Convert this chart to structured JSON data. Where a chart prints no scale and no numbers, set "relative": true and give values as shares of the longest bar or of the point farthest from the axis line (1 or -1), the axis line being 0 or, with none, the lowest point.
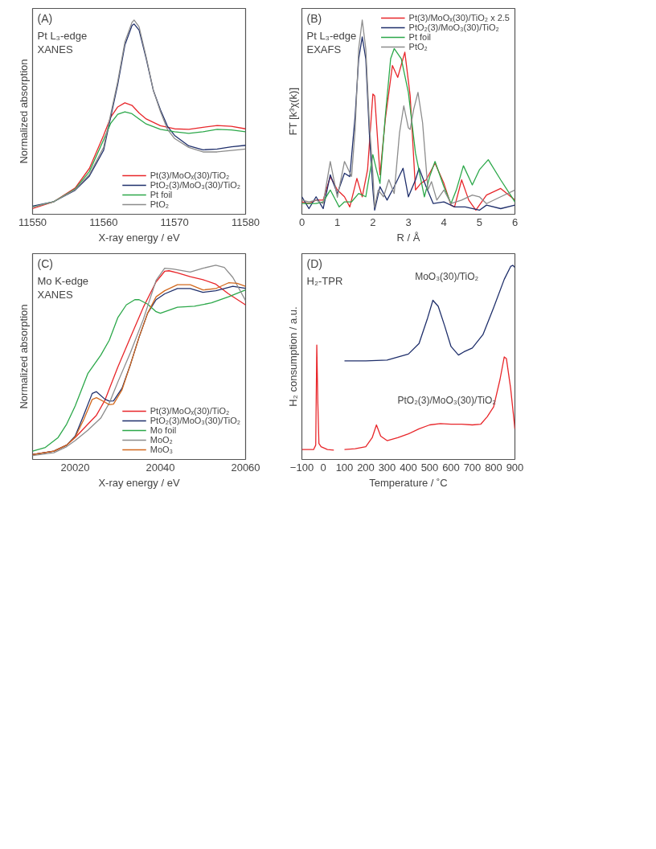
{
  "chart_data": [
    {
      "type": "line",
      "title": "(A)",
      "annotations": [
        "Pt L₃-edge",
        "XANES"
      ],
      "xlabel": "X-ray energy / eV",
      "ylabel": "Normalized absorption",
      "xlim": [
        11550,
        11580
      ],
      "xticks": [
        11550,
        11560,
        11570,
        11580
      ],
      "relative": true,
      "grid": false,
      "legend": "bottom right",
      "series": [
        {
          "name": "Pt(3)/MoOₓ(30)/TiO₂",
          "color": "#e8262a",
          "x": [
            11550,
            11553,
            11556,
            11558,
            11560,
            11561,
            11562,
            11563,
            11564,
            11565,
            11566,
            11568,
            11570,
            11572,
            11574,
            11576,
            11578,
            11580
          ],
          "values": [
            0.029,
            0.065,
            0.135,
            0.236,
            0.406,
            0.499,
            0.553,
            0.574,
            0.561,
            0.522,
            0.491,
            0.456,
            0.44,
            0.437,
            0.448,
            0.457,
            0.453,
            0.44
          ]
        },
        {
          "name": "PtO₂(3)/MoO₃(30)/TiO₂",
          "color": "#1f2f6b",
          "x": [
            11550,
            11553,
            11556,
            11558,
            11560,
            11562,
            11563,
            11564,
            11564.3,
            11565,
            11566,
            11567,
            11568,
            11569,
            11570,
            11572,
            11574,
            11576,
            11578,
            11580
          ],
          "values": [
            0.042,
            0.065,
            0.124,
            0.197,
            0.329,
            0.67,
            0.871,
            0.972,
            0.98,
            0.949,
            0.802,
            0.639,
            0.538,
            0.453,
            0.406,
            0.352,
            0.332,
            0.336,
            0.347,
            0.355
          ]
        },
        {
          "name": "Pt foil",
          "color": "#2ca84a",
          "x": [
            11550,
            11553,
            11556,
            11558,
            11560,
            11561,
            11562,
            11563,
            11564,
            11565,
            11566,
            11568,
            11570,
            11572,
            11574,
            11576,
            11578,
            11580
          ],
          "values": [
            0.037,
            0.065,
            0.13,
            0.22,
            0.383,
            0.468,
            0.515,
            0.527,
            0.518,
            0.491,
            0.465,
            0.437,
            0.425,
            0.417,
            0.425,
            0.437,
            0.434,
            0.425
          ]
        },
        {
          "name": "PtO₂",
          "color": "#8c8c8c",
          "x": [
            11550,
            11553,
            11556,
            11558,
            11560,
            11562,
            11563,
            11564,
            11564.3,
            11565,
            11566,
            11567,
            11568,
            11569,
            11570,
            11572,
            11574,
            11576,
            11578,
            11580
          ],
          "values": [
            0.037,
            0.065,
            0.127,
            0.205,
            0.344,
            0.685,
            0.887,
            0.988,
            1.0,
            0.965,
            0.81,
            0.64,
            0.53,
            0.437,
            0.39,
            0.344,
            0.321,
            0.321,
            0.329,
            0.336
          ]
        }
      ]
    },
    {
      "type": "line",
      "title": "(B)",
      "annotations": [
        "Pt L₃-edge",
        "EXAFS"
      ],
      "xlabel": "R / Å",
      "ylabel": "FT [k³χ(k)]",
      "xlim": [
        0,
        6
      ],
      "xticks": [
        0,
        1,
        2,
        3,
        4,
        5,
        6
      ],
      "relative": true,
      "grid": false,
      "legend": "top right",
      "series": [
        {
          "name": "Pt(3)/MoOₓ(30)/TiO₂ x 2.5",
          "color": "#e8262a",
          "x": [
            0,
            0.2,
            0.4,
            0.6,
            0.8,
            1.0,
            1.2,
            1.35,
            1.55,
            1.7,
            1.85,
            2.0,
            2.05,
            2.2,
            2.35,
            2.55,
            2.7,
            2.9,
            3.05,
            3.2,
            3.35,
            3.5,
            3.75,
            4.0,
            4.2,
            4.3,
            4.5,
            4.7,
            4.9,
            5.2,
            5.6,
            6.0
          ],
          "values": [
            0.064,
            0.055,
            0.073,
            0.073,
            0.194,
            0.125,
            0.09,
            0.038,
            0.185,
            0.09,
            0.229,
            0.619,
            0.61,
            0.203,
            0.489,
            0.766,
            0.705,
            0.835,
            0.61,
            0.125,
            0.159,
            0.177,
            0.263,
            0.159,
            0.047,
            0.038,
            0.177,
            0.073,
            0.021,
            0.099,
            0.133,
            0.073
          ]
        },
        {
          "name": "PtO₂(3)/MoO₃(30)/TiO₂",
          "color": "#1f2f6b",
          "x": [
            0,
            0.2,
            0.4,
            0.6,
            0.8,
            1.0,
            1.2,
            1.35,
            1.5,
            1.6,
            1.7,
            1.8,
            1.9,
            2.0,
            2.05,
            2.2,
            2.4,
            2.6,
            2.85,
            3.0,
            3.2,
            3.3,
            3.5,
            3.7,
            4.0,
            4.3,
            4.6,
            5.0,
            5.2,
            5.6,
            6.0
          ],
          "values": [
            0.09,
            0.029,
            0.09,
            0.029,
            0.203,
            0.107,
            0.211,
            0.194,
            0.506,
            0.801,
            0.913,
            0.801,
            0.419,
            0.125,
            0.021,
            0.142,
            0.073,
            0.142,
            0.237,
            0.09,
            0.177,
            0.237,
            0.142,
            0.055,
            0.064,
            0.038,
            0.038,
            0.021,
            0.047,
            0.029,
            0.047
          ]
        },
        {
          "name": "Pt foil",
          "color": "#2ca84a",
          "x": [
            0,
            0.2,
            0.4,
            0.6,
            0.8,
            1.05,
            1.2,
            1.4,
            1.6,
            1.8,
            2.0,
            2.1,
            2.2,
            2.35,
            2.5,
            2.6,
            2.8,
            3.0,
            3.2,
            3.45,
            3.6,
            3.75,
            4.0,
            4.2,
            4.35,
            4.55,
            4.8,
            5.0,
            5.25,
            5.6,
            6.0
          ],
          "values": [
            0.055,
            0.055,
            0.055,
            0.064,
            0.125,
            0.038,
            0.064,
            0.064,
            0.107,
            0.09,
            0.307,
            0.229,
            0.159,
            0.506,
            0.801,
            0.853,
            0.801,
            0.627,
            0.315,
            0.09,
            0.194,
            0.272,
            0.142,
            0.055,
            0.125,
            0.25,
            0.151,
            0.229,
            0.281,
            0.177,
            0.064
          ]
        },
        {
          "name": "PtO₂",
          "color": "#8c8c8c",
          "x": [
            0,
            0.2,
            0.4,
            0.6,
            0.8,
            1.0,
            1.2,
            1.4,
            1.5,
            1.6,
            1.7,
            1.8,
            1.9,
            2.0,
            2.05,
            2.15,
            2.3,
            2.45,
            2.6,
            2.75,
            2.87,
            3.0,
            3.05,
            3.15,
            3.27,
            3.4,
            3.55,
            3.65,
            3.8,
            4.0,
            4.2,
            4.5,
            4.8,
            5.0,
            5.2,
            5.6,
            6.0
          ],
          "values": [
            0.073,
            0.064,
            0.073,
            0.055,
            0.272,
            0.087,
            0.272,
            0.195,
            0.437,
            0.853,
            1.0,
            0.853,
            0.471,
            0.211,
            0.036,
            0.125,
            0.09,
            0.178,
            0.107,
            0.419,
            0.558,
            0.445,
            0.437,
            0.541,
            0.628,
            0.471,
            0.125,
            0.168,
            0.073,
            0.125,
            0.055,
            0.073,
            0.099,
            0.09,
            0.055,
            0.09,
            0.125
          ]
        }
      ]
    },
    {
      "type": "line",
      "title": "(C)",
      "annotations": [
        "Mo K-edge",
        "XANES"
      ],
      "xlabel": "X-ray energy / eV",
      "ylabel": "Normalized absorption",
      "xlim": [
        20010,
        20060
      ],
      "xticks": [
        20020,
        20040,
        20060
      ],
      "relative": true,
      "grid": false,
      "legend": "bottom right",
      "series": [
        {
          "name": "Pt(3)/MoOₓ(30)/TiO₂",
          "color": "#e8262a",
          "x": [
            20010,
            20015,
            20018,
            20020,
            20023,
            20025,
            20027,
            20030,
            20033,
            20036,
            20039,
            20041,
            20042,
            20044,
            20047,
            20050,
            20053,
            20056,
            20060
          ],
          "values": [
            0.025,
            0.043,
            0.074,
            0.113,
            0.182,
            0.228,
            0.306,
            0.475,
            0.63,
            0.784,
            0.915,
            0.969,
            0.972,
            0.961,
            0.941,
            0.926,
            0.903,
            0.853,
            0.796
          ]
        },
        {
          "name": "PtO₂(3)/MoO₃(30)/TiO₂",
          "color": "#1f2f6b",
          "x": [
            20010,
            20015,
            20018,
            20020,
            20022,
            20024,
            20025,
            20027,
            20028,
            20029,
            20031,
            20033,
            20035,
            20037,
            20039,
            20041,
            20044,
            20047,
            20050,
            20053,
            20057,
            20060
          ],
          "values": [
            0.025,
            0.043,
            0.074,
            0.12,
            0.228,
            0.34,
            0.349,
            0.31,
            0.301,
            0.302,
            0.367,
            0.491,
            0.63,
            0.753,
            0.823,
            0.853,
            0.88,
            0.88,
            0.861,
            0.869,
            0.892,
            0.881
          ]
        },
        {
          "name": "Mo foil",
          "color": "#2ca84a",
          "x": [
            20010,
            20013,
            20016,
            20018,
            20020,
            20023,
            20026,
            20028,
            20030,
            20032,
            20034,
            20035,
            20037,
            20039,
            20040,
            20042,
            20044,
            20048,
            20052,
            20056,
            20060
          ],
          "values": [
            0.043,
            0.062,
            0.113,
            0.182,
            0.275,
            0.444,
            0.537,
            0.614,
            0.73,
            0.796,
            0.823,
            0.823,
            0.8,
            0.761,
            0.753,
            0.769,
            0.784,
            0.789,
            0.807,
            0.838,
            0.873
          ]
        },
        {
          "name": "MoO₂",
          "color": "#8c8c8c",
          "x": [
            20010,
            20015,
            20018,
            20020,
            20023,
            20026,
            20028,
            20030,
            20033,
            20036,
            20039,
            20041,
            20043,
            20047,
            20050,
            20053,
            20055,
            20057,
            20060
          ],
          "values": [
            0.02,
            0.035,
            0.066,
            0.097,
            0.151,
            0.213,
            0.29,
            0.398,
            0.552,
            0.722,
            0.923,
            0.985,
            0.981,
            0.965,
            0.985,
            1.0,
            0.989,
            0.938,
            0.818
          ]
        },
        {
          "name": "MoO₃",
          "color": "#d2691e",
          "x": [
            20010,
            20015,
            20018,
            20020,
            20022,
            20024,
            20025,
            20027,
            20028,
            20029,
            20031,
            20033,
            20035,
            20037,
            20039,
            20041,
            20044,
            20047,
            20050,
            20053,
            20056,
            20058,
            20060
          ],
          "values": [
            0.025,
            0.043,
            0.074,
            0.115,
            0.205,
            0.309,
            0.318,
            0.295,
            0.282,
            0.285,
            0.359,
            0.491,
            0.63,
            0.753,
            0.838,
            0.869,
            0.9,
            0.9,
            0.873,
            0.88,
            0.91,
            0.907,
            0.892
          ]
        }
      ]
    },
    {
      "type": "line",
      "title": "(D)",
      "annotations": [
        "H₂-TPR"
      ],
      "xlabel": "Temperature / ˚C",
      "ylabel": "H₂ consumption / a.u.",
      "xlim": [
        -100,
        900
      ],
      "xticks": [
        -100,
        0,
        100,
        200,
        300,
        400,
        500,
        600,
        700,
        800,
        900
      ],
      "relative": true,
      "grid": false,
      "series": [
        {
          "name": "PtO₂(3)/MoO₃(30)/TiO₂",
          "color": "#e8262a",
          "x": [
            -100,
            -45,
            -35,
            -30,
            -25,
            -20,
            -10,
            20,
            50,
            75,
            100,
            150,
            200,
            230,
            250,
            270,
            300,
            350,
            400,
            450,
            500,
            550,
            600,
            650,
            700,
            740,
            770,
            800,
            830,
            850,
            860,
            880,
            900
          ],
          "values": [
            0.051,
            0.051,
            0.074,
            0.589,
            0.289,
            0.082,
            0.066,
            0.051,
            0.048,
            null,
            0.051,
            0.055,
            0.066,
            0.112,
            0.178,
            0.12,
            0.097,
            0.112,
            0.132,
            0.158,
            0.178,
            0.185,
            0.182,
            0.182,
            0.178,
            0.182,
            0.22,
            0.271,
            0.412,
            0.528,
            0.52,
            0.366,
            0.158
          ]
        },
        {
          "name": "MoO₃(30)/TiO₂",
          "color": "#1f2f6b",
          "x": [
            100,
            200,
            300,
            400,
            450,
            490,
            515,
            540,
            570,
            600,
            635,
            660,
            700,
            750,
            800,
            850,
            880,
            890,
            900
          ],
          "values": [
            0.508,
            0.508,
            0.512,
            0.543,
            0.597,
            0.728,
            0.82,
            0.789,
            0.689,
            0.582,
            0.538,
            0.554,
            0.574,
            0.643,
            0.782,
            0.928,
            0.994,
            1.0,
            0.989
          ]
        }
      ]
    }
  ]
}
